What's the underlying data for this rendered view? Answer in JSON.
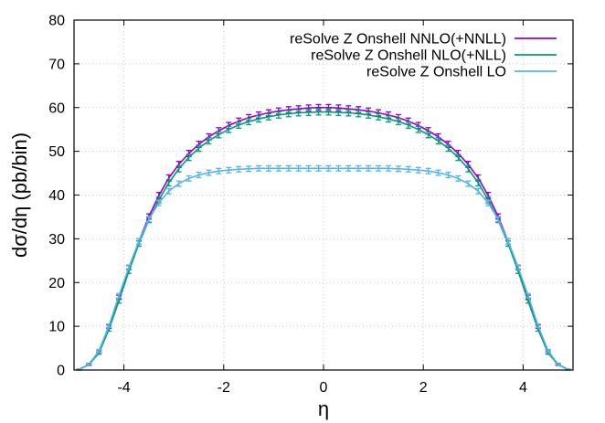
{
  "chart_data": {
    "type": "line",
    "title": "",
    "xlabel": "η",
    "ylabel": "dσ/dη (pb/bin)",
    "xlim": [
      -5,
      5
    ],
    "ylim": [
      0,
      80
    ],
    "grid": true,
    "legend_position": "top-right",
    "error_bars": true,
    "x_ticks": [
      -4,
      -2,
      0,
      2,
      4
    ],
    "x_tick_labels": [
      "-4",
      "-2",
      "0",
      "2",
      "4"
    ],
    "y_ticks": [
      0,
      10,
      20,
      30,
      40,
      50,
      60,
      70,
      80
    ],
    "y_tick_labels": [
      "0",
      "10",
      "20",
      "30",
      "40",
      "50",
      "60",
      "70",
      "80"
    ],
    "x": [
      -4.9,
      -4.7,
      -4.5,
      -4.3,
      -4.1,
      -3.9,
      -3.7,
      -3.5,
      -3.3,
      -3.1,
      -2.9,
      -2.7,
      -2.5,
      -2.3,
      -2.1,
      -1.9,
      -1.7,
      -1.5,
      -1.3,
      -1.1,
      -0.9,
      -0.7,
      -0.5,
      -0.3,
      -0.1,
      0.1,
      0.3,
      0.5,
      0.7,
      0.9,
      1.1,
      1.3,
      1.5,
      1.7,
      1.9,
      2.1,
      2.3,
      2.5,
      2.7,
      2.9,
      3.1,
      3.3,
      3.5,
      3.7,
      3.9,
      4.1,
      4.3,
      4.5,
      4.7,
      4.9
    ],
    "series": [
      {
        "name": "reSolve Z Onshell NNLO(+NNLL)",
        "color": "#9400d3",
        "values": [
          0.1,
          1.3,
          4.3,
          9.9,
          16.6,
          23.4,
          29.4,
          35.1,
          39.9,
          43.9,
          47.0,
          49.5,
          51.6,
          53.3,
          54.7,
          55.9,
          56.9,
          57.7,
          58.3,
          58.8,
          59.2,
          59.5,
          59.7,
          59.9,
          60.0,
          60.0,
          59.9,
          59.7,
          59.5,
          59.2,
          58.8,
          58.3,
          57.7,
          56.9,
          55.9,
          54.7,
          53.3,
          51.6,
          49.5,
          47.0,
          43.9,
          39.9,
          35.1,
          29.4,
          23.4,
          16.6,
          9.9,
          4.3,
          1.3,
          0.1
        ],
        "errors": [
          0.1,
          0.2,
          0.3,
          0.4,
          0.5,
          0.5,
          0.6,
          0.6,
          0.7,
          0.7,
          0.7,
          0.7,
          0.7,
          0.7,
          0.7,
          0.7,
          0.7,
          0.7,
          0.7,
          0.7,
          0.7,
          0.7,
          0.7,
          0.7,
          0.7,
          0.7,
          0.7,
          0.7,
          0.7,
          0.7,
          0.7,
          0.7,
          0.7,
          0.7,
          0.7,
          0.7,
          0.7,
          0.7,
          0.7,
          0.7,
          0.7,
          0.7,
          0.6,
          0.6,
          0.5,
          0.5,
          0.4,
          0.3,
          0.2,
          0.1
        ]
      },
      {
        "name": "reSolve Z Onshell NLO(+NLL)",
        "color": "#009e73",
        "values": [
          0.1,
          1.2,
          3.9,
          9.3,
          15.8,
          22.6,
          28.9,
          34.3,
          38.9,
          42.8,
          46.0,
          48.6,
          50.7,
          52.4,
          53.8,
          55.0,
          56.0,
          56.8,
          57.4,
          57.9,
          58.3,
          58.6,
          58.8,
          58.9,
          59.0,
          59.0,
          58.9,
          58.8,
          58.6,
          58.3,
          57.9,
          57.4,
          56.8,
          56.0,
          55.0,
          53.8,
          52.4,
          50.7,
          48.6,
          46.0,
          42.8,
          38.9,
          34.3,
          28.9,
          22.6,
          15.8,
          9.3,
          3.9,
          1.2,
          0.1
        ],
        "errors": [
          0.1,
          0.2,
          0.3,
          0.4,
          0.5,
          0.5,
          0.6,
          0.6,
          0.7,
          0.7,
          0.7,
          0.7,
          0.7,
          0.7,
          0.7,
          0.7,
          0.7,
          0.7,
          0.7,
          0.7,
          0.7,
          0.7,
          0.7,
          0.7,
          0.7,
          0.7,
          0.7,
          0.7,
          0.7,
          0.7,
          0.7,
          0.7,
          0.7,
          0.7,
          0.7,
          0.7,
          0.7,
          0.7,
          0.7,
          0.7,
          0.7,
          0.7,
          0.6,
          0.6,
          0.5,
          0.5,
          0.4,
          0.3,
          0.2,
          0.1
        ]
      },
      {
        "name": "reSolve Z Onshell LO",
        "color": "#56b4e9",
        "values": [
          0.1,
          1.2,
          4.4,
          10.1,
          17.0,
          23.5,
          29.4,
          34.5,
          38.2,
          40.9,
          42.6,
          43.8,
          44.6,
          45.1,
          45.5,
          45.7,
          45.9,
          46.0,
          46.1,
          46.1,
          46.1,
          46.1,
          46.1,
          46.1,
          46.1,
          46.1,
          46.1,
          46.1,
          46.1,
          46.1,
          46.1,
          46.1,
          46.0,
          45.9,
          45.7,
          45.5,
          45.1,
          44.6,
          43.8,
          42.6,
          40.9,
          38.2,
          34.5,
          29.4,
          23.5,
          17.0,
          10.1,
          4.4,
          1.2,
          0.1
        ],
        "errors": [
          0.1,
          0.2,
          0.3,
          0.4,
          0.5,
          0.5,
          0.6,
          0.6,
          0.6,
          0.6,
          0.6,
          0.6,
          0.6,
          0.6,
          0.6,
          0.6,
          0.6,
          0.6,
          0.6,
          0.6,
          0.6,
          0.6,
          0.6,
          0.6,
          0.6,
          0.6,
          0.6,
          0.6,
          0.6,
          0.6,
          0.6,
          0.6,
          0.6,
          0.6,
          0.6,
          0.6,
          0.6,
          0.6,
          0.6,
          0.6,
          0.6,
          0.6,
          0.6,
          0.6,
          0.5,
          0.5,
          0.4,
          0.3,
          0.2,
          0.1
        ]
      }
    ]
  }
}
